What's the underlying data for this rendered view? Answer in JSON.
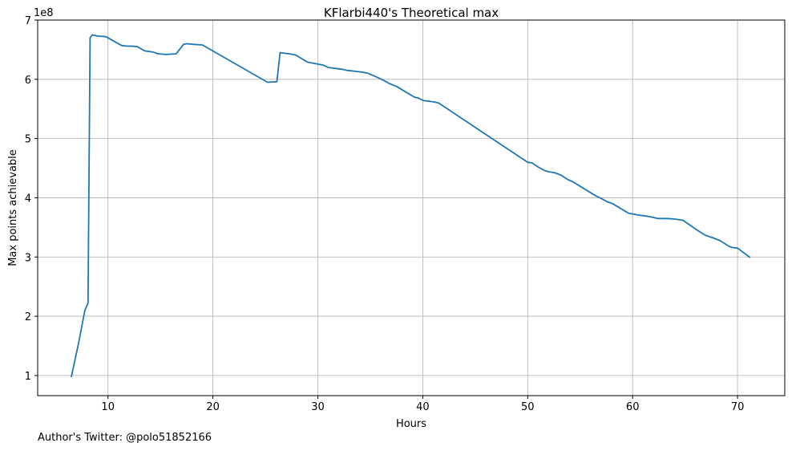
{
  "chart_data": {
    "type": "line",
    "title": "KFlarbi440's Theoretical max",
    "xlabel": "Hours",
    "ylabel": "Max points achievable",
    "y_offset_label": "1e8",
    "xlim": [
      3.3,
      74.5
    ],
    "ylim": [
      0.66,
      7.0
    ],
    "x_ticks": [
      10,
      20,
      30,
      40,
      50,
      60,
      70
    ],
    "y_ticks": [
      1,
      2,
      3,
      4,
      5,
      6,
      7
    ],
    "grid": true,
    "series": [
      {
        "color": "#1f77b4",
        "x": [
          6.5,
          7.2,
          7.8,
          8.1,
          8.3,
          8.5,
          9.0,
          9.8,
          10.5,
          11.3,
          11.8,
          12.3,
          12.8,
          13.5,
          14.3,
          14.8,
          15.5,
          16.5,
          17.2,
          17.5,
          18.2,
          19.0,
          25.2,
          26.1,
          26.4,
          27.3,
          27.9,
          29.0,
          30.5,
          31.0,
          32.3,
          32.8,
          34.3,
          34.8,
          35.7,
          36.3,
          36.8,
          37.5,
          39.2,
          39.6,
          40.1,
          41.0,
          41.5,
          50.0,
          50.4,
          51.0,
          51.6,
          52.0,
          52.6,
          53.2,
          53.8,
          54.3,
          56.5,
          57.0,
          57.6,
          58.1,
          59.6,
          60.5,
          61.3,
          61.9,
          62.4,
          63.3,
          64.0,
          64.8,
          66.1,
          66.9,
          67.7,
          68.3,
          69.2,
          69.5,
          70.0,
          71.2
        ],
        "values": [
          0.97,
          1.55,
          2.1,
          2.22,
          6.7,
          6.75,
          6.73,
          6.72,
          6.65,
          6.57,
          6.56,
          6.56,
          6.55,
          6.48,
          6.46,
          6.43,
          6.42,
          6.43,
          6.59,
          6.6,
          6.59,
          6.58,
          5.95,
          5.96,
          6.45,
          6.43,
          6.41,
          6.29,
          6.24,
          6.2,
          6.17,
          6.15,
          6.12,
          6.1,
          6.03,
          5.98,
          5.93,
          5.88,
          5.7,
          5.68,
          5.64,
          5.62,
          5.6,
          4.6,
          4.59,
          4.52,
          4.46,
          4.44,
          4.42,
          4.38,
          4.31,
          4.27,
          4.03,
          3.99,
          3.93,
          3.9,
          3.74,
          3.71,
          3.69,
          3.67,
          3.65,
          3.65,
          3.64,
          3.62,
          3.46,
          3.37,
          3.32,
          3.28,
          3.18,
          3.16,
          3.15,
          2.99
        ]
      }
    ]
  },
  "footer": {
    "author_text": "Author's Twitter: @polo51852166"
  }
}
